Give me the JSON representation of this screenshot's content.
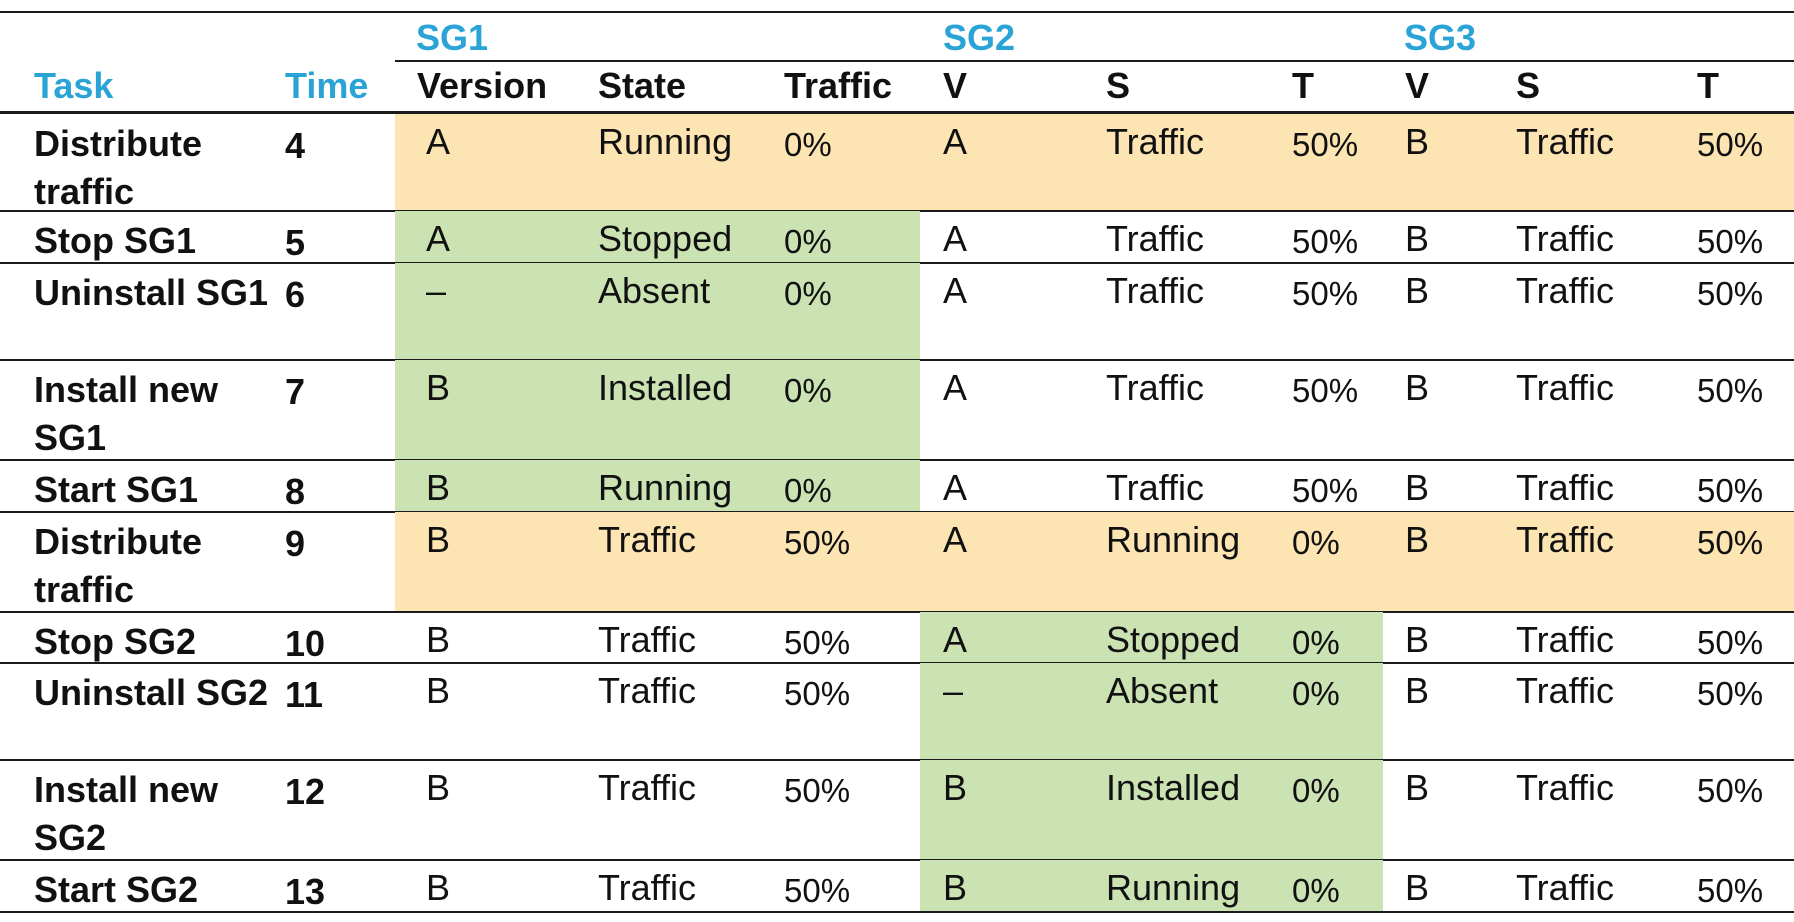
{
  "colors": {
    "accent_blue": "#2aa3d6",
    "highlight_orange": "#fde4b3",
    "highlight_green": "#cbe2b3",
    "rule_black": "#1a1a1a"
  },
  "groups": [
    "SG1",
    "SG2",
    "SG3"
  ],
  "headers": {
    "task": "Task",
    "time": "Time",
    "sg1": [
      "Version",
      "State",
      "Traffic"
    ],
    "sg2": [
      "V",
      "S",
      "T"
    ],
    "sg3": [
      "V",
      "S",
      "T"
    ]
  },
  "rows": [
    {
      "task": "Distribute traffic",
      "time": "4",
      "sg1": [
        "A",
        "Running",
        "0%"
      ],
      "sg2": [
        "A",
        "Traffic",
        "50%"
      ],
      "sg3": [
        "B",
        "Traffic",
        "50%"
      ],
      "highlight": "orange"
    },
    {
      "task": "Stop SG1",
      "time": "5",
      "sg1": [
        "A",
        "Stopped",
        "0%"
      ],
      "sg2": [
        "A",
        "Traffic",
        "50%"
      ],
      "sg3": [
        "B",
        "Traffic",
        "50%"
      ],
      "highlight": "green-sg1"
    },
    {
      "task": "Uninstall SG1",
      "time": "6",
      "sg1": [
        "–",
        "Absent",
        "0%"
      ],
      "sg2": [
        "A",
        "Traffic",
        "50%"
      ],
      "sg3": [
        "B",
        "Traffic",
        "50%"
      ],
      "highlight": "green-sg1"
    },
    {
      "task": "Install new SG1",
      "time": "7",
      "sg1": [
        "B",
        "Installed",
        "0%"
      ],
      "sg2": [
        "A",
        "Traffic",
        "50%"
      ],
      "sg3": [
        "B",
        "Traffic",
        "50%"
      ],
      "highlight": "green-sg1"
    },
    {
      "task": "Start SG1",
      "time": "8",
      "sg1": [
        "B",
        "Running",
        "0%"
      ],
      "sg2": [
        "A",
        "Traffic",
        "50%"
      ],
      "sg3": [
        "B",
        "Traffic",
        "50%"
      ],
      "highlight": "green-sg1"
    },
    {
      "task": "Distribute traffic",
      "time": "9",
      "sg1": [
        "B",
        "Traffic",
        "50%"
      ],
      "sg2": [
        "A",
        "Running",
        "0%"
      ],
      "sg3": [
        "B",
        "Traffic",
        "50%"
      ],
      "highlight": "orange"
    },
    {
      "task": "Stop SG2",
      "time": "10",
      "sg1": [
        "B",
        "Traffic",
        "50%"
      ],
      "sg2": [
        "A",
        "Stopped",
        "0%"
      ],
      "sg3": [
        "B",
        "Traffic",
        "50%"
      ],
      "highlight": "green-sg2"
    },
    {
      "task": "Uninstall SG2",
      "time": "11",
      "sg1": [
        "B",
        "Traffic",
        "50%"
      ],
      "sg2": [
        "–",
        "Absent",
        "0%"
      ],
      "sg3": [
        "B",
        "Traffic",
        "50%"
      ],
      "highlight": "green-sg2"
    },
    {
      "task": "Install new SG2",
      "time": "12",
      "sg1": [
        "B",
        "Traffic",
        "50%"
      ],
      "sg2": [
        "B",
        "Installed",
        "0%"
      ],
      "sg3": [
        "B",
        "Traffic",
        "50%"
      ],
      "highlight": "green-sg2"
    },
    {
      "task": "Start SG2",
      "time": "13",
      "sg1": [
        "B",
        "Traffic",
        "50%"
      ],
      "sg2": [
        "B",
        "Running",
        "0%"
      ],
      "sg3": [
        "B",
        "Traffic",
        "50%"
      ],
      "highlight": "green-sg2"
    }
  ]
}
